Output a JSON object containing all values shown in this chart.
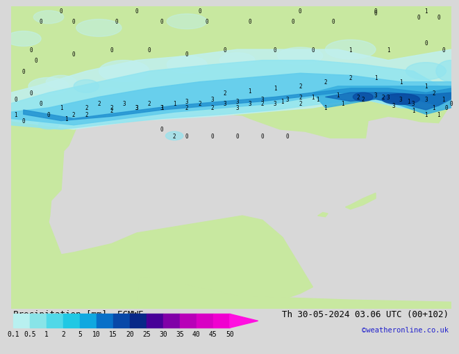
{
  "title_left": "Precipitation [mm]  ECMWF",
  "title_right": "Th 30-05-2024 03.06 UTC (00+102)",
  "credit": "©weatheronline.co.uk",
  "colorbar_labels": [
    "0.1",
    "0.5",
    "1",
    "2",
    "5",
    "10",
    "15",
    "20",
    "25",
    "30",
    "35",
    "40",
    "45",
    "50"
  ],
  "colorbar_colors": [
    "#b8f0f0",
    "#88e4e8",
    "#50d8e8",
    "#20c8e4",
    "#10a8e0",
    "#0870c8",
    "#0848a8",
    "#082888",
    "#480098",
    "#8000a8",
    "#b800b8",
    "#d800c4",
    "#f000d0",
    "#ff10e0"
  ],
  "bg_color": "#d8d8d8",
  "sea_color": "#d8d8d8",
  "land_color": "#c8e8a0",
  "land_light_color": "#d8f0b0",
  "precip_colors": {
    "lightest": "#c0f0f0",
    "light": "#90e4f0",
    "med_light": "#60ccec",
    "med": "#38b0e0",
    "med_dark": "#2090d0",
    "dark": "#1068b8",
    "darkest": "#0848a0"
  },
  "label_fontsize": 7,
  "title_fontsize": 9,
  "credit_fontsize": 7.5,
  "num_fontsize": 5.5
}
